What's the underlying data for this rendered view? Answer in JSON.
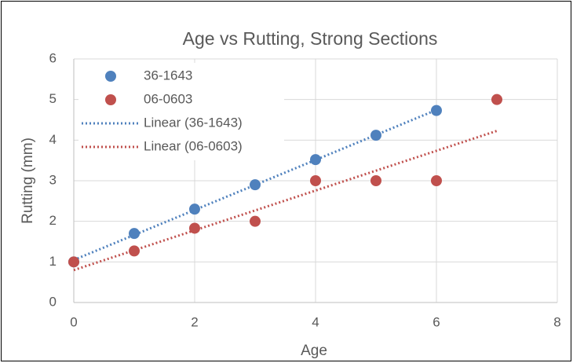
{
  "chart_data": {
    "type": "scatter",
    "title": "Age vs Rutting, Strong Sections",
    "xlabel": "Age",
    "ylabel": "Rutting (mm)",
    "series": [
      {
        "name": "36-1643",
        "color": "#4f81bd",
        "x": [
          0,
          1,
          2,
          3,
          4,
          5,
          6
        ],
        "values": [
          1,
          1.7,
          2.3,
          2.9,
          3.52,
          4.12,
          4.73
        ],
        "trendline": {
          "name": "Linear (36-1643)"
        }
      },
      {
        "name": "06-0603",
        "color": "#c0504d",
        "x": [
          0,
          1,
          2,
          3,
          4,
          5,
          6,
          7
        ],
        "values": [
          1,
          1.27,
          1.83,
          2,
          3,
          3,
          3,
          5
        ],
        "trendline": {
          "name": "Linear (06-0603)"
        }
      }
    ],
    "xlim": [
      0,
      8
    ],
    "xticks": [
      0,
      2,
      4,
      6,
      8
    ],
    "ylim": [
      0,
      6
    ],
    "yticks": [
      0,
      1,
      2,
      3,
      4,
      5,
      6
    ],
    "grid": true,
    "legend": "top-left"
  }
}
